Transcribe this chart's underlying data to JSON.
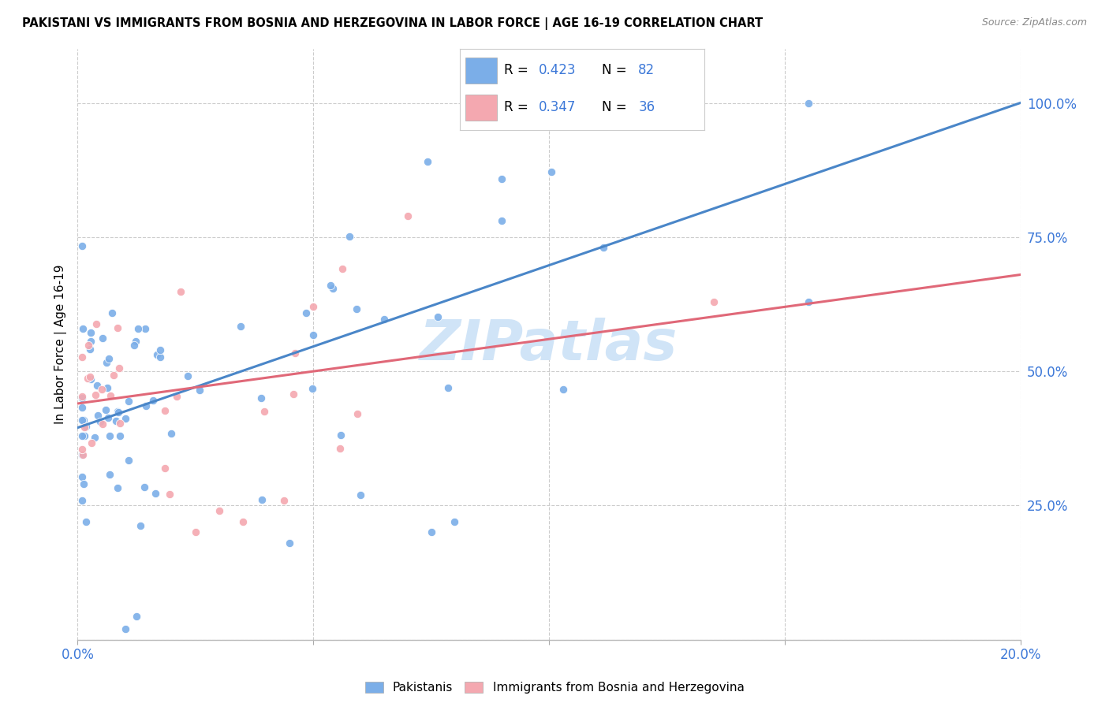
{
  "title": "PAKISTANI VS IMMIGRANTS FROM BOSNIA AND HERZEGOVINA IN LABOR FORCE | AGE 16-19 CORRELATION CHART",
  "source": "Source: ZipAtlas.com",
  "ylabel": "In Labor Force | Age 16-19",
  "xlim": [
    0.0,
    0.2
  ],
  "ylim": [
    0.0,
    1.1
  ],
  "yticks": [
    0.0,
    0.25,
    0.5,
    0.75,
    1.0
  ],
  "ytick_labels": [
    "",
    "25.0%",
    "50.0%",
    "75.0%",
    "100.0%"
  ],
  "xticks": [
    0.0,
    0.05,
    0.1,
    0.15,
    0.2
  ],
  "xtick_labels": [
    "0.0%",
    "",
    "",
    "",
    "20.0%"
  ],
  "blue_scatter": "#7baee8",
  "pink_scatter": "#f4a8b0",
  "line_blue": "#4a86c8",
  "line_pink": "#e06878",
  "text_blue": "#3c78d8",
  "text_black": "#222222",
  "text_red": "#cc2222",
  "watermark_color": "#d0e4f7",
  "background_color": "#ffffff",
  "grid_color": "#cccccc",
  "blue_trend_x0": 0.0,
  "blue_trend_y0": 0.395,
  "blue_trend_x1": 0.2,
  "blue_trend_y1": 1.0,
  "pink_trend_x0": 0.0,
  "pink_trend_y0": 0.44,
  "pink_trend_x1": 0.2,
  "pink_trend_y1": 0.68
}
